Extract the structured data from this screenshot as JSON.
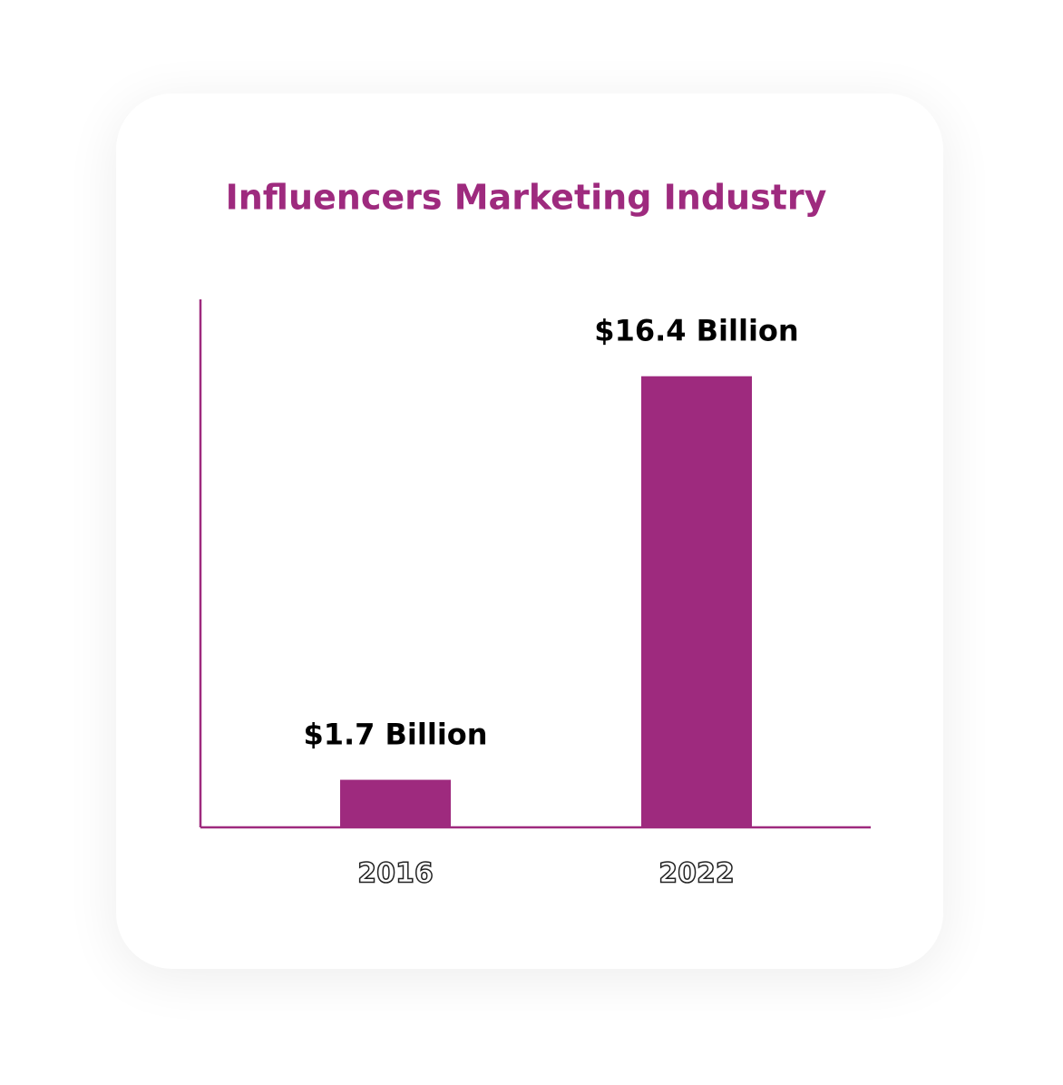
{
  "chart_data": {
    "type": "bar",
    "title": "Influencers Marketing Industry",
    "categories": [
      "2016",
      "2022"
    ],
    "values": [
      1.7,
      16.4
    ],
    "value_labels": [
      "$1.7 Billion",
      "$16.4 Billion"
    ],
    "color": "#9e2a7e",
    "ylim": [
      0,
      19.2
    ]
  }
}
